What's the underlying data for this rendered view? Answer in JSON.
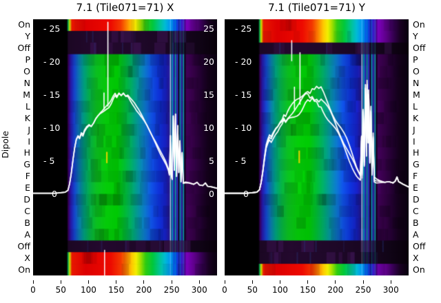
{
  "figure": {
    "background": "#ffffff",
    "text_color": "#000000",
    "curve_color": "#ffffff",
    "tick_text_color": "#ffffff",
    "yellow_mark_color": "#d8d200",
    "left_axis_label": "Dipole",
    "y_ticks": [
      {
        "value": 25,
        "left": "- 25",
        "right": "25"
      },
      {
        "value": 20,
        "left": "- 20",
        "right": "20"
      },
      {
        "value": 15,
        "left": "- 15",
        "right": "15"
      },
      {
        "value": 10,
        "left": "- 10",
        "right": "10"
      },
      {
        "value": 5,
        "left": "- 5",
        "right": "5"
      },
      {
        "value": 0,
        "left": "0",
        "right": "0"
      }
    ]
  },
  "colormaps": {
    "bright": [
      [
        0,
        "#000000"
      ],
      [
        61,
        "#000000"
      ],
      [
        63,
        "#00a050"
      ],
      [
        66,
        "#cce800"
      ],
      [
        70,
        "#e81800"
      ],
      [
        95,
        "#dd0000"
      ],
      [
        140,
        "#ee0a00"
      ],
      [
        158,
        "#f33800"
      ],
      [
        168,
        "#fb7c00"
      ],
      [
        178,
        "#ffc800"
      ],
      [
        186,
        "#f2ee00"
      ],
      [
        194,
        "#a0e000"
      ],
      [
        203,
        "#30cc10"
      ],
      [
        216,
        "#00c83c"
      ],
      [
        228,
        "#00c492"
      ],
      [
        238,
        "#00bcd4"
      ],
      [
        248,
        "#0092f4"
      ],
      [
        258,
        "#0048e0"
      ],
      [
        268,
        "#3c14c8"
      ],
      [
        277,
        "#7c00bc"
      ],
      [
        292,
        "#5c0086"
      ],
      [
        305,
        "#340050"
      ],
      [
        316,
        "#1a0024"
      ],
      [
        326,
        "#0e0014"
      ],
      [
        332,
        "#0a0010"
      ]
    ],
    "dipole": [
      [
        0,
        "#000000"
      ],
      [
        61,
        "#000000"
      ],
      [
        64,
        "#3c0066"
      ],
      [
        68,
        "#2818ac"
      ],
      [
        75,
        "#1548d4"
      ],
      [
        83,
        "#0c7cb4"
      ],
      [
        92,
        "#00a482"
      ],
      [
        102,
        "#06b44a"
      ],
      [
        114,
        "#0cc622"
      ],
      [
        132,
        "#06d20a"
      ],
      [
        152,
        "#00d004"
      ],
      [
        165,
        "#00c232"
      ],
      [
        178,
        "#00b26c"
      ],
      [
        190,
        "#0698a4"
      ],
      [
        202,
        "#0d7cd4"
      ],
      [
        213,
        "#1156ec"
      ],
      [
        227,
        "#0f34e0"
      ],
      [
        239,
        "#1822cc"
      ],
      [
        247,
        "#2a1896"
      ],
      [
        254,
        "#300a70"
      ],
      [
        265,
        "#380a66"
      ],
      [
        276,
        "#46005e"
      ],
      [
        290,
        "#360048"
      ],
      [
        304,
        "#220030"
      ],
      [
        317,
        "#120018"
      ],
      [
        332,
        "#0a0010"
      ]
    ],
    "dark": [
      [
        0,
        "#000000"
      ],
      [
        61,
        "#000000"
      ],
      [
        64,
        "#1c0724"
      ],
      [
        120,
        "#24092e"
      ],
      [
        200,
        "#1e0828"
      ],
      [
        262,
        "#180620"
      ],
      [
        300,
        "#100416"
      ],
      [
        332,
        "#080009"
      ]
    ]
  },
  "chart_data": [
    {
      "type": "heatmap+line",
      "title": "7.1 (Tile071=71) X",
      "x_range": [
        0,
        332
      ],
      "x_ticks": [
        0,
        50,
        100,
        150,
        200,
        250,
        300
      ],
      "value_axis_range": [
        0,
        27
      ],
      "value_ticks": [
        0,
        5,
        10,
        15,
        20,
        25
      ],
      "rows": [
        "On",
        "Y",
        "Off",
        "P",
        "O",
        "N",
        "M",
        "L",
        "K",
        "J",
        "I",
        "H",
        "G",
        "F",
        "E",
        "D",
        "C",
        "B",
        "A",
        "Off",
        "X",
        "On"
      ],
      "bright_row_indices": [
        0,
        20,
        21
      ],
      "dark_row_indices": [
        1,
        2,
        19
      ],
      "band_start_x": 64,
      "seed": 11,
      "show_right_tick_labels": true,
      "traces": {
        "count": 2,
        "spread": 0.3,
        "wiggle": 0.22
      },
      "spikes": [
        {
          "x": 128,
          "top": 15.3
        },
        {
          "x": 135,
          "top": 26.0
        }
      ],
      "yellow_mark": {
        "x": 133,
        "v1": 4.7,
        "v2": 6.4
      },
      "white_marks": [
        {
          "x": 129,
          "r0": 19.8,
          "r1": 22.0
        }
      ],
      "rfi_stripes": [
        {
          "x": 247,
          "w": 1.4,
          "color": "#b0f0f0"
        },
        {
          "x": 250,
          "w": 1.6,
          "color": "#00b4c8"
        },
        {
          "x": 253,
          "w": 1.2,
          "color": "#2547ee"
        },
        {
          "x": 256,
          "w": 1.4,
          "color": "#00c0c0"
        },
        {
          "x": 259,
          "w": 1.6,
          "color": "#2a3cd8"
        },
        {
          "x": 262,
          "w": 2.0,
          "color": "#0c0620"
        },
        {
          "x": 264.5,
          "w": 1.6,
          "color": "#00a8c0"
        },
        {
          "x": 267.5,
          "w": 1.2,
          "color": "#2038d0"
        },
        {
          "x": 270.5,
          "w": 1.6,
          "color": "#00b0b0"
        },
        {
          "x": 273,
          "w": 2.0,
          "color": "#0a0618"
        }
      ],
      "curve_points": [
        [
          0,
          0.15
        ],
        [
          40,
          0.15
        ],
        [
          58,
          0.3
        ],
        [
          63,
          0.6
        ],
        [
          66,
          1.6
        ],
        [
          69,
          3.2
        ],
        [
          72,
          5.2
        ],
        [
          75,
          7.0
        ],
        [
          78,
          8.3
        ],
        [
          81,
          8.8
        ],
        [
          84,
          8.5
        ],
        [
          87,
          9.2
        ],
        [
          90,
          8.9
        ],
        [
          93,
          9.6
        ],
        [
          97,
          10.1
        ],
        [
          101,
          10.4
        ],
        [
          105,
          10.2
        ],
        [
          109,
          10.7
        ],
        [
          113,
          11.4
        ],
        [
          117,
          11.9
        ],
        [
          121,
          12.3
        ],
        [
          125,
          12.6
        ],
        [
          129,
          12.9
        ],
        [
          133,
          13.2
        ],
        [
          137,
          13.4
        ],
        [
          141,
          13.9
        ],
        [
          145,
          14.6
        ],
        [
          148,
          15.0
        ],
        [
          151,
          14.6
        ],
        [
          155,
          15.2
        ],
        [
          159,
          14.9
        ],
        [
          163,
          15.3
        ],
        [
          167,
          14.9
        ],
        [
          171,
          15.0
        ],
        [
          175,
          14.5
        ],
        [
          179,
          14.0
        ],
        [
          183,
          13.5
        ],
        [
          187,
          12.9
        ],
        [
          191,
          12.4
        ],
        [
          196,
          11.7
        ],
        [
          201,
          11.0
        ],
        [
          206,
          10.3
        ],
        [
          211,
          9.5
        ],
        [
          216,
          8.7
        ],
        [
          221,
          7.9
        ],
        [
          226,
          7.0
        ],
        [
          231,
          6.1
        ],
        [
          236,
          5.3
        ],
        [
          240,
          4.6
        ],
        [
          244,
          3.7
        ],
        [
          246,
          2.9
        ],
        [
          248,
          8.8
        ],
        [
          249,
          3.0
        ],
        [
          251,
          2.2
        ],
        [
          253,
          11.8
        ],
        [
          255,
          3.6
        ],
        [
          257,
          12.1
        ],
        [
          259,
          2.7
        ],
        [
          261,
          10.4
        ],
        [
          263,
          3.3
        ],
        [
          265,
          8.1
        ],
        [
          267,
          1.9
        ],
        [
          269,
          6.3
        ],
        [
          271,
          1.7
        ],
        [
          275,
          1.8
        ],
        [
          282,
          1.7
        ],
        [
          290,
          1.5
        ],
        [
          296,
          1.8
        ],
        [
          300,
          1.4
        ],
        [
          306,
          1.3
        ],
        [
          311,
          1.7
        ],
        [
          315,
          1.2
        ],
        [
          322,
          1.1
        ],
        [
          332,
          0.9
        ]
      ]
    },
    {
      "type": "heatmap+line",
      "title": "7.1 (Tile071=71) Y",
      "x_range": [
        0,
        332
      ],
      "x_ticks": [
        0,
        50,
        100,
        150,
        200,
        250,
        300
      ],
      "value_axis_range": [
        0,
        27
      ],
      "value_ticks": [
        0,
        5,
        10,
        15,
        20,
        25
      ],
      "rows": [
        "On",
        "Y",
        "Off",
        "P",
        "O",
        "N",
        "M",
        "L",
        "K",
        "J",
        "I",
        "H",
        "G",
        "F",
        "E",
        "D",
        "C",
        "B",
        "A",
        "Off",
        "X",
        "On"
      ],
      "bright_row_indices": [
        0,
        1,
        21
      ],
      "dark_row_indices": [
        2,
        19,
        20
      ],
      "band_start_x": 64,
      "seed": 29,
      "show_right_tick_labels": false,
      "traces": {
        "count": 3,
        "spread": 1.1,
        "wiggle": 0.55
      },
      "spikes": [
        {
          "x": 126,
          "top": 16.2
        },
        {
          "x": 136,
          "top": 21.4
        }
      ],
      "yellow_mark": {
        "x": 134.5,
        "v1": 4.7,
        "v2": 6.6
      },
      "white_marks": [
        {
          "x": 121,
          "r0": 1.8,
          "r1": 3.6
        }
      ],
      "rfi_stripes": [
        {
          "x": 247,
          "w": 1.4,
          "color": "#b0f0f0"
        },
        {
          "x": 250,
          "w": 1.6,
          "color": "#00b4c8"
        },
        {
          "x": 253,
          "w": 1.2,
          "color": "#2547ee"
        },
        {
          "x": 256,
          "w": 1.4,
          "color": "#00c0c0"
        },
        {
          "x": 259,
          "w": 1.6,
          "color": "#2a3cd8"
        },
        {
          "x": 262,
          "w": 2.0,
          "color": "#0c0620"
        },
        {
          "x": 264.5,
          "w": 1.6,
          "color": "#00a8c0"
        },
        {
          "x": 267.5,
          "w": 1.2,
          "color": "#2038d0"
        },
        {
          "x": 270.5,
          "w": 1.6,
          "color": "#00b0b0"
        },
        {
          "x": 273,
          "w": 2.0,
          "color": "#0a0618"
        }
      ],
      "curve_points": [
        [
          0,
          0.15
        ],
        [
          40,
          0.15
        ],
        [
          58,
          0.3
        ],
        [
          63,
          0.7
        ],
        [
          66,
          1.8
        ],
        [
          69,
          3.5
        ],
        [
          72,
          5.5
        ],
        [
          75,
          7.2
        ],
        [
          78,
          8.0
        ],
        [
          81,
          8.6
        ],
        [
          84,
          8.3
        ],
        [
          88,
          9.0
        ],
        [
          92,
          9.6
        ],
        [
          96,
          10.0
        ],
        [
          100,
          10.6
        ],
        [
          104,
          11.0
        ],
        [
          107,
          11.6
        ],
        [
          110,
          11.2
        ],
        [
          114,
          11.8
        ],
        [
          118,
          12.2
        ],
        [
          122,
          12.5
        ],
        [
          126,
          12.8
        ],
        [
          130,
          13.1
        ],
        [
          134,
          13.4
        ],
        [
          138,
          13.8
        ],
        [
          142,
          14.3
        ],
        [
          146,
          14.8
        ],
        [
          150,
          15.0
        ],
        [
          154,
          14.6
        ],
        [
          158,
          15.1
        ],
        [
          162,
          14.7
        ],
        [
          166,
          14.9
        ],
        [
          170,
          14.4
        ],
        [
          174,
          14.6
        ],
        [
          178,
          14.0
        ],
        [
          182,
          13.4
        ],
        [
          186,
          12.8
        ],
        [
          190,
          12.2
        ],
        [
          195,
          11.4
        ],
        [
          200,
          10.6
        ],
        [
          205,
          9.8
        ],
        [
          210,
          9.0
        ],
        [
          215,
          8.1
        ],
        [
          220,
          7.2
        ],
        [
          225,
          6.2
        ],
        [
          230,
          5.2
        ],
        [
          234,
          4.4
        ],
        [
          238,
          3.6
        ],
        [
          242,
          3.0
        ],
        [
          245,
          2.6
        ],
        [
          247,
          8.5
        ],
        [
          248,
          2.8
        ],
        [
          250,
          12.5
        ],
        [
          252,
          4.5
        ],
        [
          254,
          16.2
        ],
        [
          256,
          6.0
        ],
        [
          257,
          16.8
        ],
        [
          259,
          8.0
        ],
        [
          260,
          15.3
        ],
        [
          262,
          5.0
        ],
        [
          264,
          12.8
        ],
        [
          266,
          3.2
        ],
        [
          268,
          8.8
        ],
        [
          270,
          2.2
        ],
        [
          274,
          2.0
        ],
        [
          281,
          1.9
        ],
        [
          289,
          1.8
        ],
        [
          296,
          1.9
        ],
        [
          304,
          1.7
        ],
        [
          308,
          2.0
        ],
        [
          311,
          2.6
        ],
        [
          314,
          1.9
        ],
        [
          322,
          1.5
        ],
        [
          332,
          1.1
        ]
      ]
    }
  ]
}
